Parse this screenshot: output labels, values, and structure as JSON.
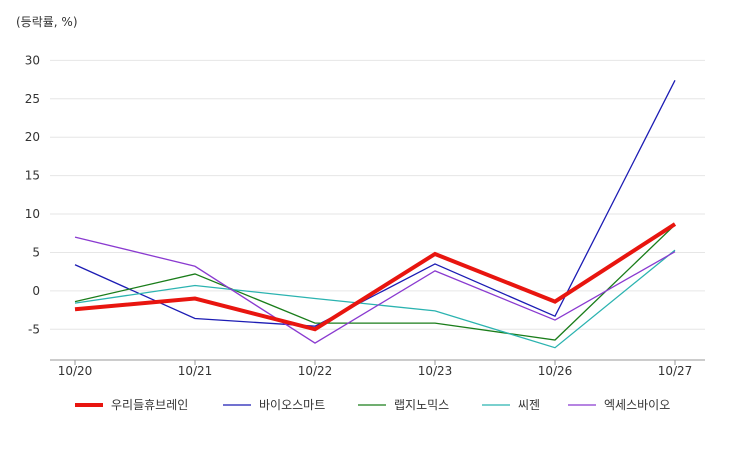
{
  "chart_data": {
    "type": "line",
    "unit_label": "(등락률, %)",
    "categories": [
      "10/20",
      "10/21",
      "10/22",
      "10/23",
      "10/26",
      "10/27"
    ],
    "ylim": [
      -9,
      32
    ],
    "yticks": [
      -5,
      0,
      5,
      10,
      15,
      20,
      25,
      30
    ],
    "grid": true,
    "legend_position": "bottom",
    "series": [
      {
        "name": "우리들휴브레인",
        "color": "#e8150f",
        "width": 4,
        "values": [
          -2.4,
          -1.0,
          -5.0,
          4.8,
          -1.4,
          8.7
        ]
      },
      {
        "name": "바이오스마트",
        "color": "#1c1cb4",
        "width": 1.3,
        "values": [
          3.4,
          -3.6,
          -4.6,
          3.5,
          -3.3,
          27.4
        ]
      },
      {
        "name": "랩지노믹스",
        "color": "#1a7d1a",
        "width": 1.3,
        "values": [
          -1.4,
          2.2,
          -4.2,
          -4.2,
          -6.4,
          8.6
        ]
      },
      {
        "name": "씨젠",
        "color": "#2bb3b0",
        "width": 1.3,
        "values": [
          -1.6,
          0.7,
          -1.0,
          -2.6,
          -7.4,
          5.3
        ]
      },
      {
        "name": "엑세스바이오",
        "color": "#8a3ad0",
        "width": 1.3,
        "values": [
          7.0,
          3.2,
          -6.8,
          2.6,
          -3.8,
          5.1
        ]
      }
    ]
  }
}
